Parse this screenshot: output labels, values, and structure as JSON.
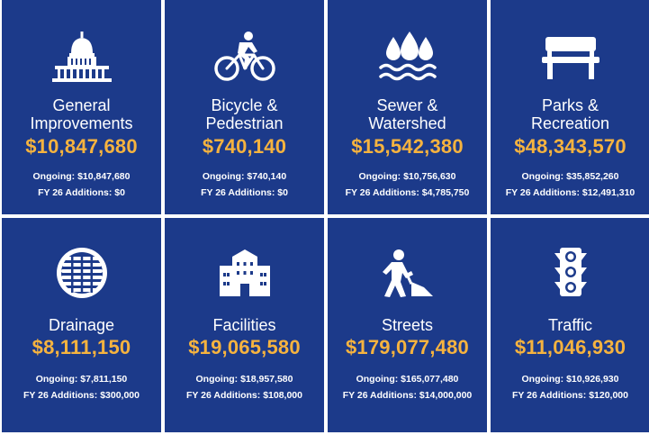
{
  "tiles": [
    {
      "title": "General\nImprovements",
      "amount": "$10,847,680",
      "ongoing": "Ongoing: $10,847,680",
      "additions": "FY 26 Additions: $0",
      "icon": "capitol-building-icon"
    },
    {
      "title": "Bicycle &\nPedestrian",
      "amount": "$740,140",
      "ongoing": "Ongoing: $740,140",
      "additions": "FY 26 Additions: $0",
      "icon": "cyclist-icon"
    },
    {
      "title": "Sewer &\nWatershed",
      "amount": "$15,542,380",
      "ongoing": "Ongoing: $10,756,630",
      "additions": "FY 26 Additions: $4,785,750",
      "icon": "water-drops-icon"
    },
    {
      "title": "Parks &\nRecreation",
      "amount": "$48,343,570",
      "ongoing": "Ongoing: $35,852,260",
      "additions": "FY 26 Additions: $12,491,310",
      "icon": "park-bench-icon"
    },
    {
      "title": "Drainage",
      "amount": "$8,111,150",
      "ongoing": "Ongoing: $7,811,150",
      "additions": "FY 26 Additions: $300,000",
      "icon": "drain-grate-icon"
    },
    {
      "title": "Facilities",
      "amount": "$19,065,580",
      "ongoing": "Ongoing: $18,957,580",
      "additions": "FY 26 Additions: $108,000",
      "icon": "building-icon"
    },
    {
      "title": "Streets",
      "amount": "$179,077,480",
      "ongoing": "Ongoing: $165,077,480",
      "additions": "FY 26 Additions: $14,000,000",
      "icon": "road-worker-icon"
    },
    {
      "title": "Traffic",
      "amount": "$11,046,930",
      "ongoing": "Ongoing: $10,926,930",
      "additions": "FY 26 Additions: $120,000",
      "icon": "traffic-light-icon"
    }
  ],
  "colors": {
    "tile_bg": "#1c3a8a",
    "amount": "#f6b33f",
    "text": "#ffffff"
  }
}
